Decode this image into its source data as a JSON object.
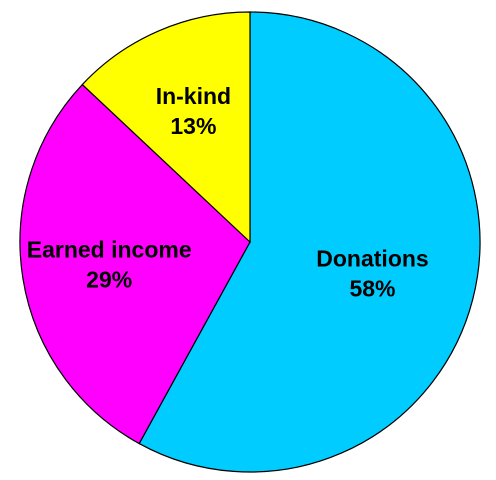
{
  "chart_data": {
    "type": "pie",
    "title": "",
    "start_angle_deg": 0,
    "direction": "clockwise",
    "slices": [
      {
        "label": "Donations",
        "value": 58,
        "value_label": "58%",
        "color": "#00CCFF"
      },
      {
        "label": "Earned income",
        "value": 29,
        "value_label": "29%",
        "color": "#FF00FF"
      },
      {
        "label": "In-kind",
        "value": 13,
        "value_label": "13%",
        "color": "#FFFF00"
      }
    ],
    "legend": "none",
    "labels_inside": true
  }
}
